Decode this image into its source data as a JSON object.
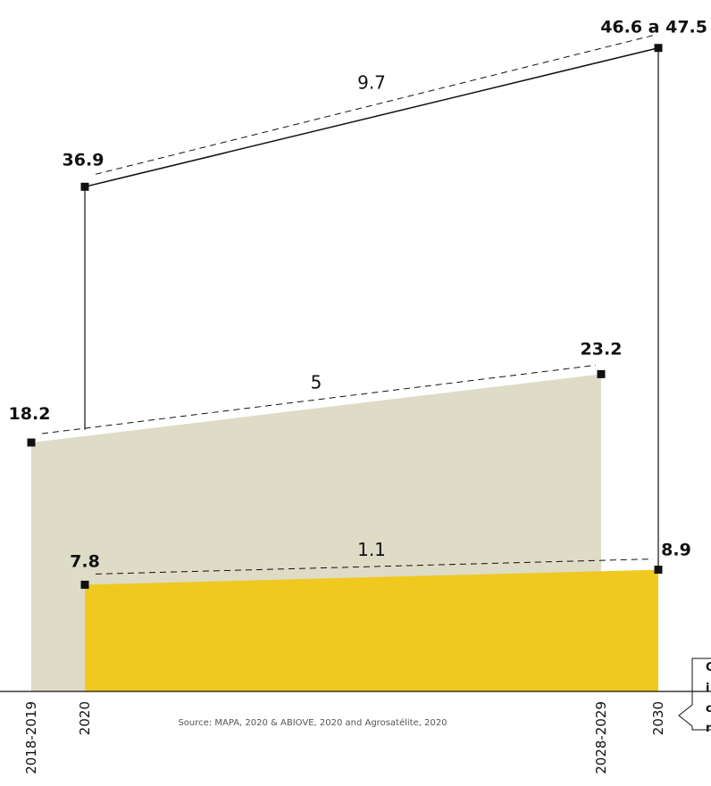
{
  "chart_data": {
    "type": "area",
    "x_ticks": [
      "2018-2019",
      "2020",
      "2028-2029",
      "2030"
    ],
    "series": [
      {
        "key": "beige",
        "color": "#dedbc7",
        "points": [
          {
            "x": "2018-2019",
            "y": 18.2,
            "label": "18.2"
          },
          {
            "x": "2028-2029",
            "y": 23.2,
            "label": "23.2"
          }
        ],
        "difference": "5"
      },
      {
        "key": "yellow",
        "color": "#efc91f",
        "points": [
          {
            "x": "2020",
            "y": 7.8,
            "label": "7.8"
          },
          {
            "x": "2030",
            "y": 8.9,
            "label": "8.9"
          }
        ],
        "difference": "1.1"
      },
      {
        "key": "outline",
        "color": "#111111",
        "points": [
          {
            "x": "2020",
            "y": 36.9,
            "label": "36.9"
          },
          {
            "x": "2030",
            "y": 47.05,
            "label": "46.6 a 47.5"
          }
        ],
        "difference": "9.7"
      }
    ],
    "source": "Source: MAPA, 2020 & ABIOVE, 2020 and Agrosatélite, 2020",
    "callout_letters": [
      "C",
      "i",
      "c",
      "r"
    ]
  }
}
